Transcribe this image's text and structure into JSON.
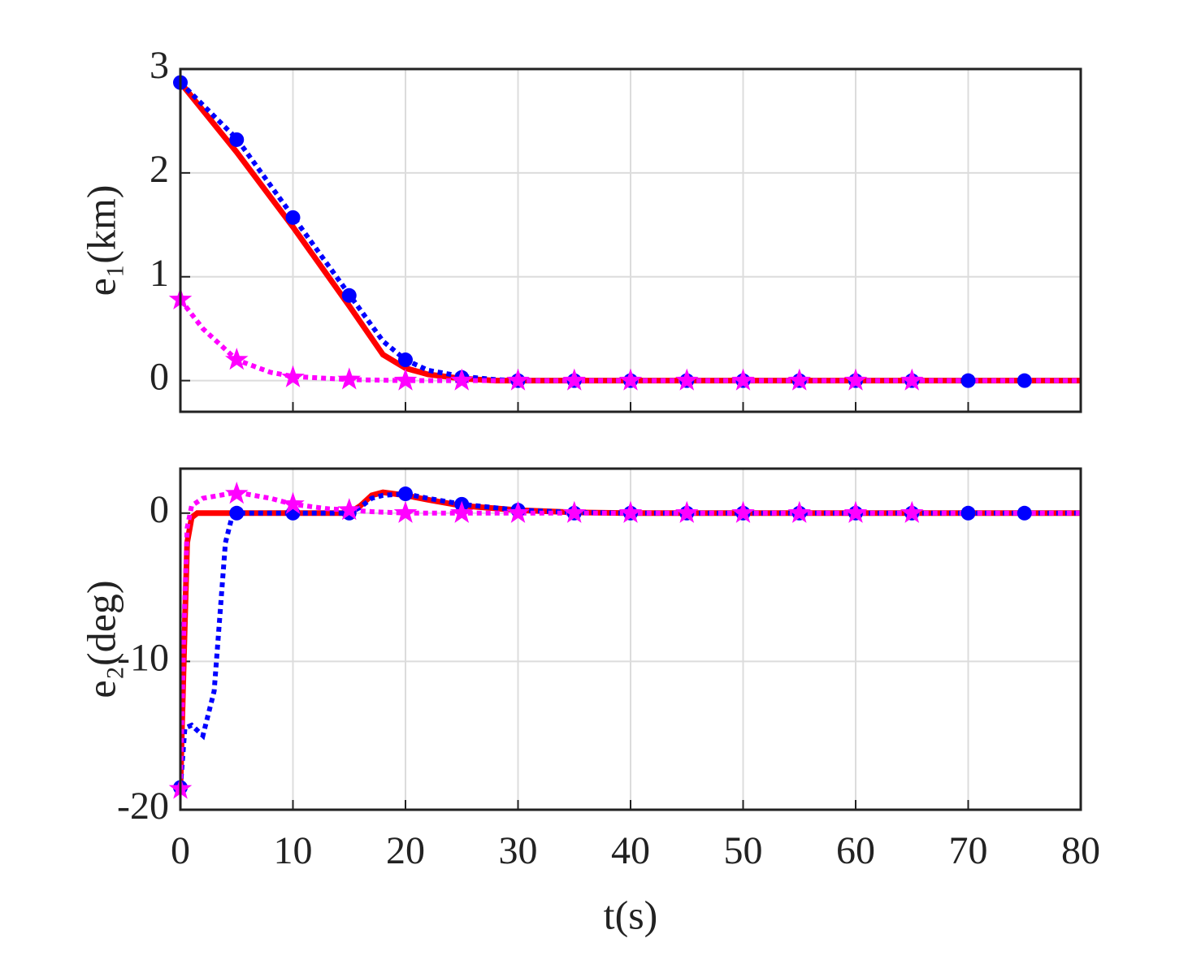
{
  "chart_data": [
    {
      "type": "line",
      "ylabel": "e₁(km)",
      "xlim": [
        0,
        80
      ],
      "xticks": [
        0,
        10,
        20,
        30,
        40,
        50,
        60,
        70,
        80
      ],
      "show_xticklabels": false,
      "ylim": [
        -0.3,
        3
      ],
      "yticks": [
        0,
        1,
        2,
        3
      ],
      "grid": true,
      "series": [
        {
          "color": "#ff0000",
          "style": "solid",
          "x": [
            0,
            5,
            10,
            15,
            18,
            20,
            22,
            25,
            28,
            80
          ],
          "values": [
            2.87,
            2.2,
            1.48,
            0.72,
            0.25,
            0.12,
            0.06,
            0.02,
            0,
            0
          ]
        },
        {
          "color": "#0000ff",
          "style": "dotted",
          "x": [
            0,
            5,
            10,
            15,
            18,
            20,
            22,
            25,
            28,
            30,
            80
          ],
          "values": [
            2.87,
            2.33,
            1.58,
            0.83,
            0.38,
            0.2,
            0.1,
            0.04,
            0.01,
            0,
            0
          ]
        },
        {
          "color": "#ff00ff",
          "style": "dotted",
          "x": [
            0,
            2,
            5,
            8,
            10,
            15,
            20,
            80
          ],
          "values": [
            0.78,
            0.5,
            0.2,
            0.08,
            0.04,
            0.01,
            0,
            0
          ]
        },
        {
          "color": "#0000ff",
          "style": "none",
          "marker": "circle",
          "x": [
            0,
            5,
            10,
            15,
            20,
            25,
            30,
            35,
            40,
            45,
            50,
            55,
            60,
            65,
            70,
            75
          ],
          "values": [
            2.87,
            2.32,
            1.57,
            0.82,
            0.2,
            0.03,
            0,
            0,
            0,
            0,
            0,
            0,
            0,
            0,
            0,
            0
          ]
        },
        {
          "color": "#ff00ff",
          "style": "none",
          "marker": "star",
          "x": [
            0,
            5,
            10,
            15,
            20,
            25,
            30,
            35,
            40,
            45,
            50,
            55,
            60,
            65
          ],
          "values": [
            0.78,
            0.2,
            0.03,
            0.01,
            0,
            0,
            0,
            0,
            0,
            0,
            0,
            0,
            0,
            0
          ]
        }
      ]
    },
    {
      "type": "line",
      "ylabel": "e₂(deg)",
      "xlabel": "t(s)",
      "xlim": [
        0,
        80
      ],
      "xticks": [
        0,
        10,
        20,
        30,
        40,
        50,
        60,
        70,
        80
      ],
      "show_xticklabels": true,
      "ylim": [
        -20,
        3
      ],
      "yticks": [
        -20,
        -10,
        0
      ],
      "grid": true,
      "series": [
        {
          "color": "#ff0000",
          "style": "solid",
          "x": [
            0,
            0.3,
            0.6,
            1,
            1.5,
            15,
            16,
            17,
            18,
            20,
            22,
            25,
            30,
            35,
            40,
            80
          ],
          "values": [
            -18.5,
            -10,
            -2,
            -0.3,
            0,
            0,
            0.5,
            1.2,
            1.4,
            1.2,
            0.9,
            0.5,
            0.2,
            0.05,
            0,
            0
          ]
        },
        {
          "color": "#0000ff",
          "style": "dotted",
          "x": [
            0,
            0.4,
            1,
            2,
            3,
            3.5,
            4,
            4.5,
            5,
            15,
            16,
            17,
            18,
            20,
            22,
            25,
            30,
            35,
            40,
            80
          ],
          "values": [
            -18.5,
            -14.5,
            -14.3,
            -15,
            -12,
            -7,
            -2,
            -0.5,
            0,
            0,
            0.4,
            1,
            1.2,
            1.3,
            1,
            0.6,
            0.2,
            0.05,
            0,
            0
          ]
        },
        {
          "color": "#ff00ff",
          "style": "dotted",
          "x": [
            0,
            0.3,
            0.6,
            1,
            2,
            5,
            8,
            10,
            13,
            15,
            17,
            20,
            80
          ],
          "values": [
            -18.5,
            -8,
            -1,
            0.5,
            1,
            1.4,
            1,
            0.6,
            0.3,
            0.2,
            0.1,
            0,
            0
          ]
        },
        {
          "color": "#0000ff",
          "style": "none",
          "marker": "circle",
          "x": [
            0,
            5,
            10,
            15,
            20,
            25,
            30,
            35,
            40,
            45,
            50,
            55,
            60,
            65,
            70,
            75
          ],
          "values": [
            -18.5,
            0,
            0,
            0,
            1.3,
            0.6,
            0.2,
            0,
            0,
            0,
            0,
            0,
            0,
            0,
            0,
            0
          ]
        },
        {
          "color": "#ff00ff",
          "style": "none",
          "marker": "star",
          "x": [
            0,
            5,
            10,
            15,
            20,
            25,
            30,
            35,
            40,
            45,
            50,
            55,
            60,
            65
          ],
          "values": [
            -18.6,
            1.3,
            0.6,
            0.2,
            0,
            0,
            0,
            0,
            0,
            0,
            0,
            0,
            0,
            0
          ]
        }
      ]
    }
  ]
}
